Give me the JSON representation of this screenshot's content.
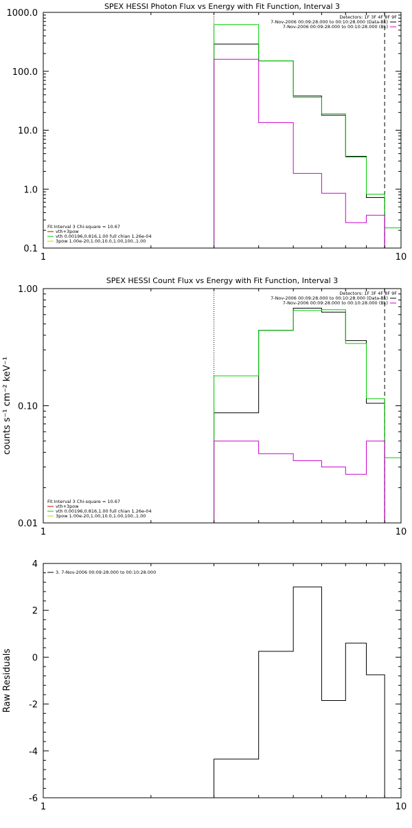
{
  "chart_data": [
    {
      "type": "line",
      "drawstyle": "steps",
      "title": "SPEX HESSI Photon Flux vs Energy with Fit Function, Interval 3",
      "xlabel": "",
      "ylabel": "",
      "xscale": "log",
      "yscale": "log",
      "xlim": [
        1,
        10
      ],
      "ylim": [
        0.1,
        1000
      ],
      "xticks": [
        {
          "v": 1,
          "label": "1"
        },
        {
          "v": 10,
          "label": "10"
        }
      ],
      "yticks": [
        {
          "v": 0.1,
          "label": "0.1"
        },
        {
          "v": 1,
          "label": "1.0"
        },
        {
          "v": 10,
          "label": "10.0"
        },
        {
          "v": 100,
          "label": "100.0"
        },
        {
          "v": 1000,
          "label": "1000.0"
        }
      ],
      "vlines": [
        {
          "x": 3.0,
          "style": "dotted",
          "color": "#000000"
        },
        {
          "x": 9.0,
          "style": "dashed",
          "color": "#000000"
        }
      ],
      "info_lines": [
        "Detectors: 1F 3F 4F 8F 9F",
        "7-Nov-2006 00:09:28.000 to 00:10:28.000 (Data-Bk)",
        "7-Nov-2006 00:09:28.000 to 00:10:28.000 (Bk)"
      ],
      "info_colors": [
        "",
        "#000000",
        "#cc00cc"
      ],
      "legend": {
        "placement": "bottom-left",
        "header": "Fit Interval 3   Chi-square = 10.67",
        "entries": [
          {
            "label": "vth+3pow",
            "color": "#cc0000"
          },
          {
            "label": "vth 0.00196,0.816,1.00   full chian 1.26e-04",
            "color": "#00cc00"
          },
          {
            "label": "3pow 1.00e-20,1.00,10.0,1.00,100.,1.00",
            "color": "#cccc00"
          }
        ]
      },
      "series": [
        {
          "color": "#000000",
          "edges": [
            3,
            4,
            5,
            6,
            7,
            8,
            9
          ],
          "values": [
            290,
            150,
            38,
            18,
            3.6,
            0.72
          ]
        },
        {
          "color": "#00cc00",
          "edges": [
            3,
            4,
            5,
            6,
            7,
            8,
            9,
            10
          ],
          "values": [
            620,
            150,
            36,
            19,
            3.5,
            0.82,
            0.22
          ]
        },
        {
          "color": "#cc00cc",
          "edges": [
            3,
            4,
            5,
            6,
            7,
            8,
            9
          ],
          "values": [
            160,
            13.5,
            1.85,
            0.85,
            0.27,
            0.36
          ]
        }
      ]
    },
    {
      "type": "line",
      "drawstyle": "steps",
      "title": "SPEX HESSI Count Flux vs Energy with Fit Function, Interval 3",
      "xlabel": "",
      "ylabel": "counts s⁻¹ cm⁻² keV⁻¹",
      "xscale": "log",
      "yscale": "log",
      "xlim": [
        1,
        10
      ],
      "ylim": [
        0.01,
        1
      ],
      "xticks": [
        {
          "v": 1,
          "label": "1"
        },
        {
          "v": 10,
          "label": "10"
        }
      ],
      "yticks": [
        {
          "v": 0.01,
          "label": "0.01"
        },
        {
          "v": 0.1,
          "label": "0.10"
        },
        {
          "v": 1,
          "label": "1.00"
        }
      ],
      "vlines": [
        {
          "x": 3.0,
          "style": "dotted",
          "color": "#000000"
        },
        {
          "x": 9.0,
          "style": "dashed",
          "color": "#000000"
        }
      ],
      "info_lines": [
        "Detectors: 1F 3F 4F 8F 9F",
        "7-Nov-2006 00:09:28.000 to 00:10:28.000 (Data-Bk)",
        "7-Nov-2006 00:09:28.000 to 00:10:28.000 (Bk)"
      ],
      "info_colors": [
        "",
        "#000000",
        "#cc00cc"
      ],
      "legend": {
        "placement": "bottom-left",
        "header": "Fit Interval 3   Chi-square = 10.67",
        "entries": [
          {
            "label": "vth+3pow",
            "color": "#cc0000"
          },
          {
            "label": "vth 0.00196,0.816,1.00   full chian 1.26e-04",
            "color": "#00cc00"
          },
          {
            "label": "3pow 1.00e-20,1.00,10.0,1.00,100.,1.00",
            "color": "#cccc00"
          }
        ]
      },
      "series": [
        {
          "color": "#000000",
          "edges": [
            3,
            4,
            5,
            6,
            7,
            8,
            9
          ],
          "values": [
            0.087,
            0.44,
            0.68,
            0.63,
            0.36,
            0.105
          ]
        },
        {
          "color": "#00cc00",
          "edges": [
            3,
            4,
            5,
            6,
            7,
            8,
            9,
            10
          ],
          "values": [
            0.18,
            0.44,
            0.65,
            0.66,
            0.34,
            0.115,
            0.036
          ]
        },
        {
          "color": "#cc00cc",
          "edges": [
            3,
            4,
            5,
            6,
            7,
            8,
            9
          ],
          "values": [
            0.05,
            0.039,
            0.034,
            0.03,
            0.026,
            0.05
          ]
        }
      ]
    },
    {
      "type": "line",
      "drawstyle": "steps",
      "title": "",
      "xlabel": "",
      "ylabel": "Raw Residuals",
      "xscale": "log",
      "yscale": "linear",
      "xlim": [
        1,
        10
      ],
      "ylim": [
        -6,
        4
      ],
      "xticks": [
        {
          "v": 1,
          "label": "1"
        },
        {
          "v": 10,
          "label": "10"
        }
      ],
      "yticks": [
        {
          "v": -6,
          "label": "-6"
        },
        {
          "v": -4,
          "label": "-4"
        },
        {
          "v": -2,
          "label": "-2"
        },
        {
          "v": 0,
          "label": "0"
        },
        {
          "v": 2,
          "label": "2"
        },
        {
          "v": 4,
          "label": "4"
        }
      ],
      "legend": {
        "placement": "top-left",
        "entries": [
          {
            "label": "3.  7-Nov-2006 00:09:28.000 to 00:10:28.000",
            "color": "#000000"
          }
        ]
      },
      "series": [
        {
          "color": "#000000",
          "edges": [
            3,
            4,
            5,
            6,
            7,
            8,
            9
          ],
          "values": [
            -4.35,
            0.25,
            3.0,
            -1.85,
            0.6,
            -0.75
          ]
        }
      ]
    }
  ]
}
